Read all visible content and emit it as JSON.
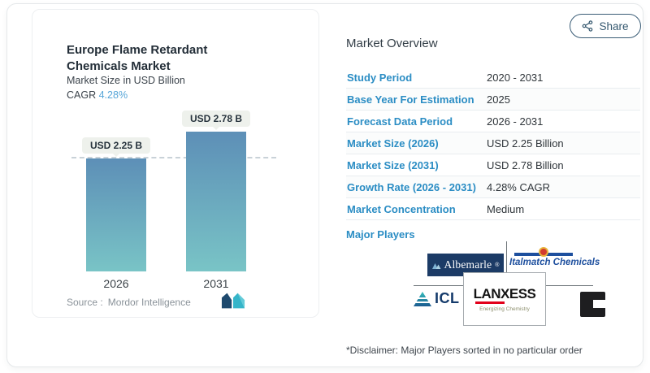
{
  "share": {
    "label": "Share"
  },
  "chart": {
    "title": "Europe Flame Retardant Chemicals Market",
    "subtitle": "Market Size in USD Billion",
    "cagr_label": "CAGR",
    "cagr_value": "4.28%",
    "source_label": "Source :",
    "source_name": "Mordor Intelligence"
  },
  "chart_data": {
    "type": "bar",
    "title": "Europe Flame Retardant Chemicals Market",
    "ylabel": "Market Size in USD Billion",
    "categories": [
      "2026",
      "2031"
    ],
    "values": [
      2.25,
      2.78
    ],
    "value_labels": [
      "USD 2.25 B",
      "USD 2.78 B"
    ],
    "ylim": [
      0,
      3
    ],
    "annotations": "dashed horizontal reference line at 2026 value (USD 2.25 B)",
    "legend": "none",
    "bar_gradient_top": "#5d8fb7",
    "bar_gradient_bottom": "#79c4c6"
  },
  "overview": {
    "title": "Market Overview",
    "rows": [
      {
        "label": "Study Period",
        "value": "2020 - 2031"
      },
      {
        "label": "Base Year For Estimation",
        "value": "2025"
      },
      {
        "label": "Forecast Data Period",
        "value": "2026 - 2031"
      },
      {
        "label": "Market Size (2026)",
        "value": "USD 2.25 Billion"
      },
      {
        "label": "Market Size (2031)",
        "value": "USD 2.78 Billion"
      },
      {
        "label": "Growth Rate (2026 - 2031)",
        "value": "4.28% CAGR"
      },
      {
        "label": "Market Concentration",
        "value": "Medium"
      }
    ],
    "major_players_label": "Major Players",
    "players": [
      "Albemarle",
      "Italmatch Chemicals",
      "ICL",
      "LANXESS",
      "C"
    ],
    "lanxess_tagline": "Energizing Chemistry",
    "disclaimer": "*Disclaimer: Major Players sorted in no particular order"
  },
  "colors": {
    "accent_blue": "#2b8dc4",
    "cagr_blue": "#56a5d8",
    "bar_top": "#5d8fb7",
    "bar_bottom": "#79c4c6",
    "navy": "#1c3b66",
    "teal": "#35b5c9",
    "share_outline": "#3a5c76",
    "lanxess_red": "#e2001a"
  }
}
